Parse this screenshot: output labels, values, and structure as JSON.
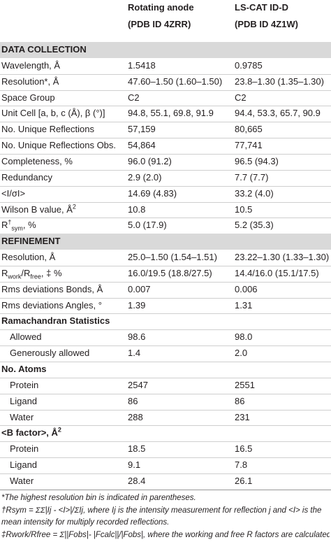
{
  "table": {
    "columns": [
      {
        "line1": "Rotating anode",
        "line2": "(PDB ID 4ZRR)"
      },
      {
        "line1": "LS-CAT ID-D",
        "line2": "(PDB ID 4Z1W)"
      }
    ],
    "rows": [
      {
        "kind": "section",
        "label": "DATA COLLECTION"
      },
      {
        "kind": "data",
        "label": "Wavelength, Å",
        "values": [
          "1.5418",
          "0.9785"
        ]
      },
      {
        "kind": "data",
        "label": "Resolution*, Å",
        "values": [
          "47.60–1.50 (1.60–1.50)",
          "23.8–1.30 (1.35–1.30)"
        ]
      },
      {
        "kind": "data",
        "label": "Space Group",
        "values": [
          "C2",
          "C2"
        ]
      },
      {
        "kind": "data",
        "label": "Unit Cell [a, b, c (Å), β (°)]",
        "values": [
          "94.8, 55.1, 69.8, 91.9",
          "94.4, 53.3, 65.7, 90.9"
        ]
      },
      {
        "kind": "data",
        "label": "No. Unique Reflections",
        "values": [
          "57,159",
          "80,665"
        ]
      },
      {
        "kind": "data",
        "label": "No. Unique Reflections Obs.",
        "values": [
          "54,864",
          "77,741"
        ]
      },
      {
        "kind": "data",
        "label": "Completeness, %",
        "values": [
          "96.0 (91.2)",
          "96.5 (94.3)"
        ]
      },
      {
        "kind": "data",
        "label": "Redundancy",
        "values": [
          "2.9 (2.0)",
          "7.7 (7.7)"
        ]
      },
      {
        "kind": "data",
        "label": "<I/σI>",
        "values": [
          "14.69 (4.83)",
          "33.2 (4.0)"
        ]
      },
      {
        "kind": "data",
        "label": [
          {
            "text": "Wilson B value, Å"
          },
          {
            "text": "2",
            "style": "sup"
          }
        ],
        "values": [
          "10.8",
          "10.5"
        ]
      },
      {
        "kind": "data",
        "label": [
          {
            "text": "R"
          },
          {
            "text": "†",
            "style": "sup"
          },
          {
            "text": "sym",
            "style": "sub"
          },
          {
            "text": ", %"
          }
        ],
        "values": [
          "5.0 (17.9)",
          "5.2 (35.3)"
        ]
      },
      {
        "kind": "section",
        "label": "REFINEMENT"
      },
      {
        "kind": "data",
        "label": "Resolution, Å",
        "values": [
          "25.0–1.50 (1.54–1.51)",
          "23.22–1.30 (1.33–1.30)"
        ]
      },
      {
        "kind": "data",
        "label": [
          {
            "text": "R"
          },
          {
            "text": "work",
            "style": "sub"
          },
          {
            "text": "/R"
          },
          {
            "text": "free",
            "style": "sub"
          },
          {
            "text": ", ‡ %"
          }
        ],
        "values": [
          "16.0/19.5 (18.8/27.5)",
          "14.4/16.0 (15.1/17.5)"
        ]
      },
      {
        "kind": "data",
        "label": "Rms deviations Bonds, Å",
        "values": [
          "0.007",
          "0.006"
        ]
      },
      {
        "kind": "data",
        "label": "Rms deviations Angles, °",
        "values": [
          "1.39",
          "1.31"
        ]
      },
      {
        "kind": "group",
        "label": "Ramachandran Statistics"
      },
      {
        "kind": "sub",
        "label": "Allowed",
        "values": [
          "98.6",
          "98.0"
        ]
      },
      {
        "kind": "sub",
        "label": "Generously allowed",
        "values": [
          "1.4",
          "2.0"
        ]
      },
      {
        "kind": "group",
        "label": "No. Atoms"
      },
      {
        "kind": "sub",
        "label": "Protein",
        "values": [
          "2547",
          "2551"
        ]
      },
      {
        "kind": "sub",
        "label": "Ligand",
        "values": [
          "86",
          "86"
        ]
      },
      {
        "kind": "sub",
        "label": "Water",
        "values": [
          "288",
          "231"
        ]
      },
      {
        "kind": "group",
        "label": [
          {
            "text": "<B factor>, Å"
          },
          {
            "text": "2",
            "style": "sup"
          }
        ]
      },
      {
        "kind": "sub",
        "label": "Protein",
        "values": [
          "18.5",
          "16.5"
        ]
      },
      {
        "kind": "sub",
        "label": "Ligand",
        "values": [
          "9.1",
          "7.8"
        ]
      },
      {
        "kind": "sub",
        "label": "Water",
        "values": [
          "28.4",
          "26.1"
        ]
      }
    ],
    "footnotes": [
      "*The highest resolution bin is indicated in parentheses.",
      "†Rsym = ΣΣ|Ij - <I>|/ΣIj, where Ij is the intensity measurement for reflection j and <I> is the mean intensity for multiply recorded reflections.",
      "‡Rwork/Rfree = Σ||Fobs|- |Fcalc||/|Fobs|, where the working and free R factors are calculated"
    ]
  }
}
